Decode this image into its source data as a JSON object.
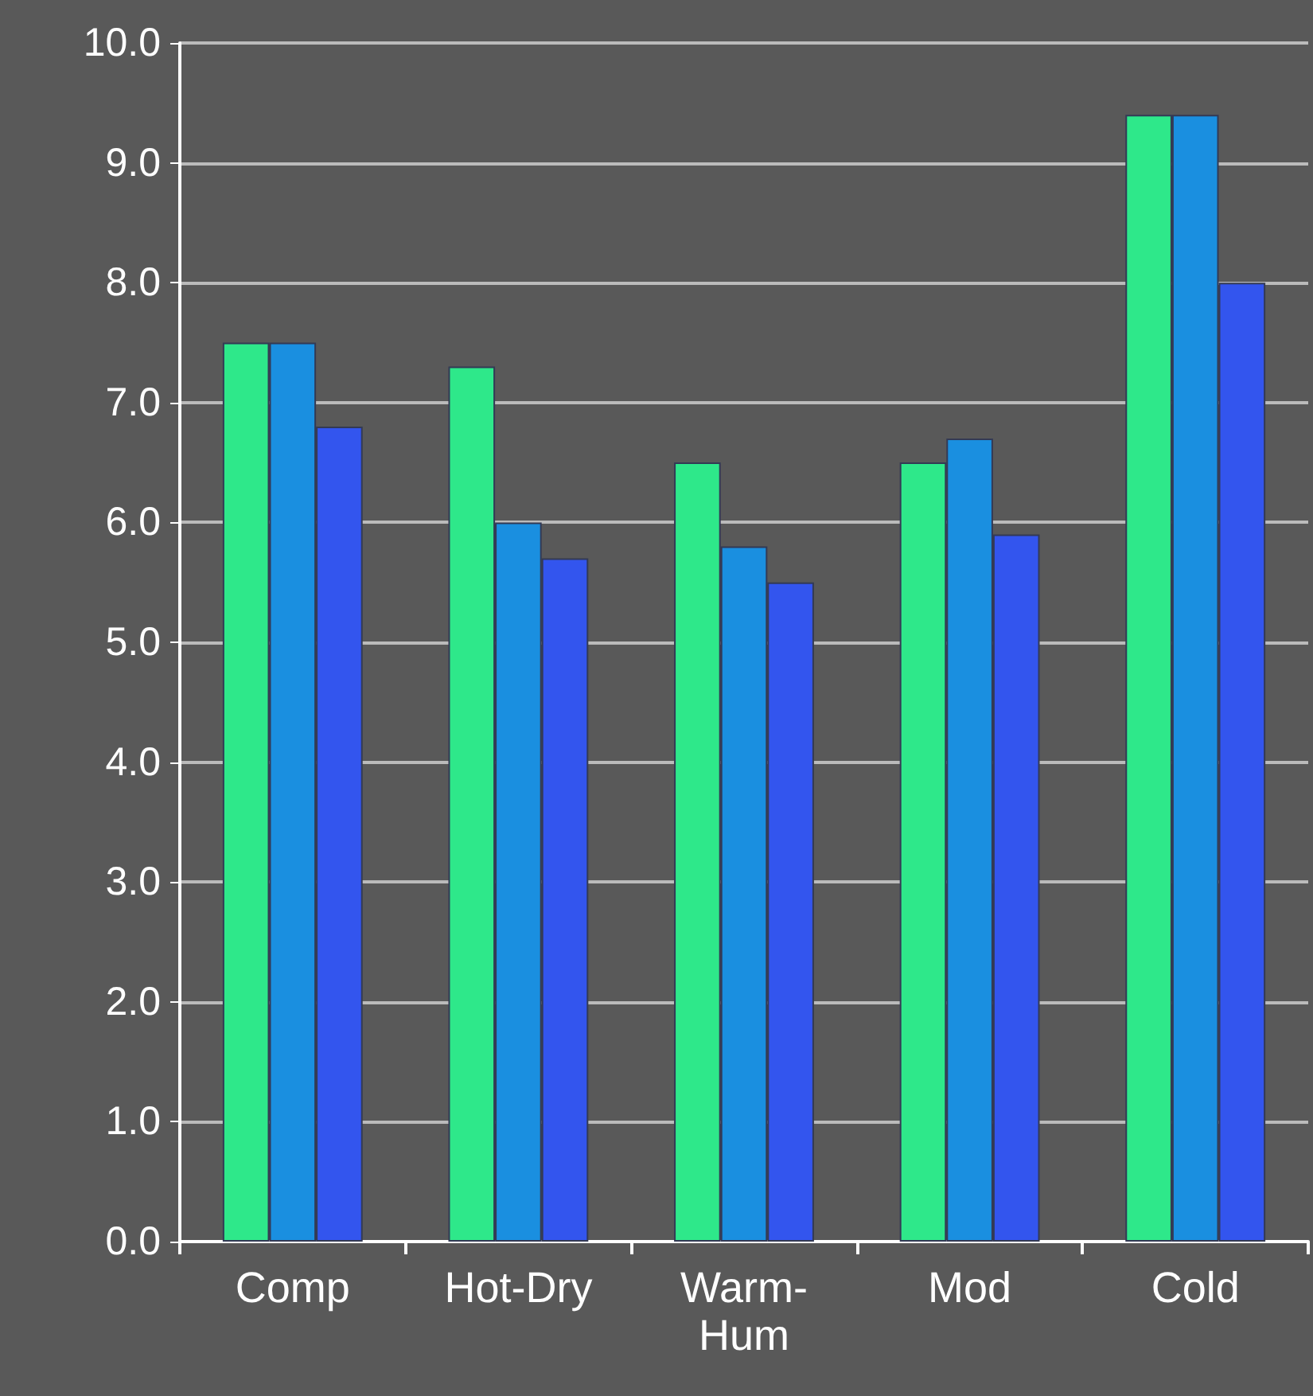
{
  "chart_data": {
    "type": "bar",
    "categories": [
      "Comp",
      "Hot-Dry",
      "Warm-\nHum",
      "Mod",
      "Cold"
    ],
    "series": [
      {
        "color": "#2ee88a",
        "values": [
          7.5,
          7.3,
          6.5,
          6.5,
          9.4
        ]
      },
      {
        "color": "#1a8fe0",
        "values": [
          7.5,
          6.0,
          5.8,
          6.7,
          9.4
        ]
      },
      {
        "color": "#3355ee",
        "values": [
          6.8,
          5.7,
          5.5,
          5.9,
          8.0
        ]
      }
    ],
    "ylim": [
      0,
      10
    ],
    "yticks": [
      {
        "value": 0,
        "label": "0.0"
      },
      {
        "value": 1,
        "label": "1.0"
      },
      {
        "value": 2,
        "label": "2.0"
      },
      {
        "value": 3,
        "label": "3.0"
      },
      {
        "value": 4,
        "label": "4.0"
      },
      {
        "value": 5,
        "label": "5.0"
      },
      {
        "value": 6,
        "label": "6.0"
      },
      {
        "value": 7,
        "label": "7.0"
      },
      {
        "value": 8,
        "label": "8.0"
      },
      {
        "value": 9,
        "label": "9.0"
      },
      {
        "value": 10,
        "label": "10.0"
      }
    ],
    "grid": "y"
  }
}
